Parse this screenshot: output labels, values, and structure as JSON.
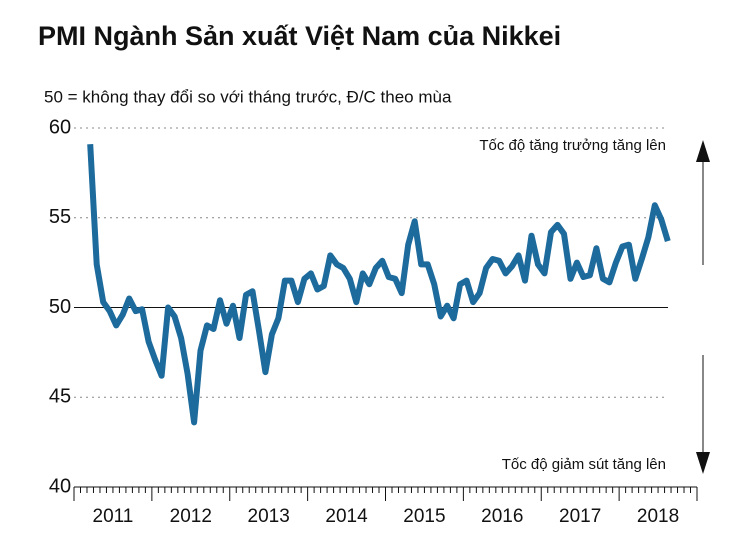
{
  "chart_data": {
    "type": "line",
    "title": "PMI Ngành Sản xuất Việt Nam của Nikkei",
    "subtitle": "50 = không thay đổi so với tháng trước, Đ/C theo mùa",
    "annotations": [
      "Tốc độ tăng trưởng tăng lên",
      "Tốc độ giảm sút tăng lên"
    ],
    "year_labels": [
      "2011",
      "2012",
      "2013",
      "2014",
      "2015",
      "2016",
      "2017",
      "2018"
    ],
    "categories": [
      null,
      null,
      null,
      null,
      null,
      null,
      null,
      null,
      null,
      null,
      null,
      null,
      null,
      null,
      null,
      null,
      null,
      null,
      null,
      null,
      null,
      null,
      null,
      null,
      null,
      null,
      null,
      null,
      null,
      null,
      null,
      null,
      null,
      null,
      null,
      null,
      null,
      null,
      null,
      null,
      null,
      null,
      null,
      null,
      null,
      null,
      null,
      null,
      null,
      null,
      null,
      null,
      null,
      null,
      null,
      null,
      null,
      null,
      null,
      null,
      null,
      null,
      null,
      null,
      null,
      null,
      null,
      null,
      null,
      null,
      null,
      null,
      null,
      null,
      null,
      null,
      null,
      null,
      null,
      null,
      null,
      null,
      null,
      null,
      null,
      null,
      null,
      null,
      null,
      null
    ],
    "series": [
      {
        "color": "#1d6a9c",
        "values": [
          59.1,
          52.4,
          50.3,
          49.8,
          49.0,
          49.6,
          50.5,
          49.8,
          49.9,
          48.1,
          47.1,
          46.2,
          50.0,
          49.5,
          48.3,
          46.3,
          43.6,
          47.6,
          49.0,
          48.8,
          50.4,
          49.1,
          50.1,
          48.3,
          50.7,
          50.9,
          48.7,
          46.4,
          48.5,
          49.4,
          51.5,
          51.5,
          50.3,
          51.6,
          51.9,
          51.0,
          51.2,
          52.9,
          52.4,
          52.2,
          51.6,
          50.3,
          51.9,
          51.3,
          52.2,
          52.6,
          51.7,
          51.6,
          50.8,
          53.5,
          54.8,
          52.4,
          52.4,
          51.3,
          49.5,
          50.1,
          49.4,
          51.3,
          51.5,
          50.3,
          50.8,
          52.2,
          52.7,
          52.6,
          51.9,
          52.3,
          52.9,
          51.5,
          54.0,
          52.4,
          51.9,
          54.2,
          54.6,
          54.1,
          51.6,
          52.5,
          51.7,
          51.8,
          53.3,
          51.6,
          51.4,
          52.5,
          53.4,
          53.5,
          51.6,
          52.7,
          53.9,
          55.7,
          54.9,
          53.7
        ]
      }
    ],
    "ylim": [
      40,
      60
    ],
    "yticks": [
      40,
      45,
      50,
      55,
      60
    ],
    "reference_line": 50,
    "grid": true
  }
}
